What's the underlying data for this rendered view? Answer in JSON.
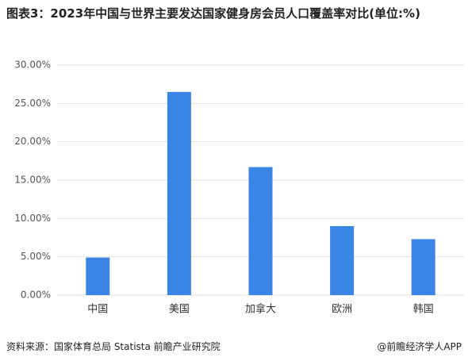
{
  "chart_data": {
    "type": "bar",
    "title": "图表3：2023年中国与世界主要发达国家健身房会员人口覆盖率对比(单位:%)",
    "categories": [
      "中国",
      "美国",
      "加拿大",
      "欧洲",
      "韩国"
    ],
    "values": [
      4.9,
      26.5,
      16.7,
      9.0,
      7.3
    ],
    "color": "#3a85e6",
    "ylim": [
      0,
      30
    ],
    "yticks": [
      {
        "value": 0,
        "label": "0.00%"
      },
      {
        "value": 5,
        "label": "5.00%"
      },
      {
        "value": 10,
        "label": "10.00%"
      },
      {
        "value": 15,
        "label": "15.00%"
      },
      {
        "value": 20,
        "label": "20.00%"
      },
      {
        "value": 25,
        "label": "25.00%"
      },
      {
        "value": 30,
        "label": "30.00%"
      }
    ],
    "grid": true
  },
  "footer": {
    "source": "资料来源：国家体育总局 Statista 前瞻产业研究院",
    "credit": "@前瞻经济学人APP"
  }
}
